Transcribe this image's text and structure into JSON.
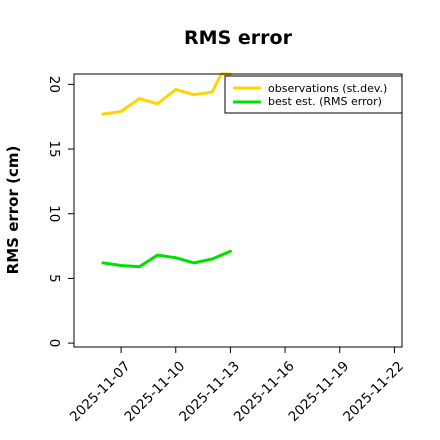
{
  "chart_data": {
    "type": "line",
    "title": "RMS error",
    "ylabel": "RMS error (cm)",
    "xlabel": "",
    "ylim": [
      -0.3,
      20.8
    ],
    "xlim": [
      "2025-11-04T10:00",
      "2025-11-22T10:00"
    ],
    "yticks": [
      0,
      5,
      10,
      15,
      20
    ],
    "xticks": [
      "2025-11-07",
      "2025-11-10",
      "2025-11-13",
      "2025-11-16",
      "2025-11-19",
      "2025-11-22"
    ],
    "highlighted_xtick": "2025-11-13",
    "highlight_color": "#228b22",
    "grid": false,
    "legend_position": "top-right",
    "series": [
      {
        "name": "observations (st.dev.)",
        "color": "#ffd400",
        "x": [
          "2025-11-06T00:00",
          "2025-11-07T00:00",
          "2025-11-08T00:00",
          "2025-11-09T00:00",
          "2025-11-10T00:00",
          "2025-11-11T00:00",
          "2025-11-12T00:00",
          "2025-11-12T12:00",
          "2025-11-13T00:00"
        ],
        "values": [
          17.7,
          17.9,
          18.9,
          18.5,
          19.6,
          19.2,
          19.4,
          20.8,
          20.8
        ]
      },
      {
        "name": "best est. (RMS error)",
        "color": "#00e000",
        "x": [
          "2025-11-06T00:00",
          "2025-11-07T00:00",
          "2025-11-08T00:00",
          "2025-11-09T00:00",
          "2025-11-10T00:00",
          "2025-11-11T00:00",
          "2025-11-12T00:00",
          "2025-11-13T00:00"
        ],
        "values": [
          6.2,
          6.0,
          5.9,
          6.8,
          6.6,
          6.2,
          6.5,
          7.1
        ]
      }
    ]
  }
}
